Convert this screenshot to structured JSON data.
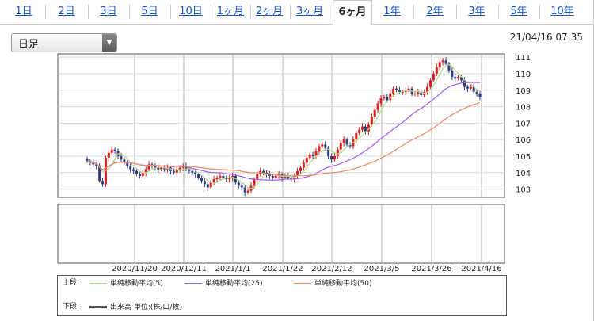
{
  "tabs": [
    {
      "label": "1日",
      "active": false
    },
    {
      "label": "2日",
      "active": false
    },
    {
      "label": "3日",
      "active": false
    },
    {
      "label": "5日",
      "active": false
    },
    {
      "label": "10日",
      "active": false
    },
    {
      "label": "1ヶ月",
      "active": false
    },
    {
      "label": "2ヶ月",
      "active": false
    },
    {
      "label": "3ヶ月",
      "active": false
    },
    {
      "label": "6ヶ月",
      "active": true
    },
    {
      "label": "1年",
      "active": false
    },
    {
      "label": "2年",
      "active": false
    },
    {
      "label": "3年",
      "active": false
    },
    {
      "label": "5年",
      "active": false
    },
    {
      "label": "10年",
      "active": false
    }
  ],
  "controls": {
    "period_select": "日足",
    "datetime": "21/04/16 07:35"
  },
  "legend": {
    "upper_label": "上段:",
    "lower_label": "下段:",
    "ma5": "単純移動平均(5)",
    "ma25": "単純移動平均(25)",
    "ma50": "単純移動平均(50)",
    "volume": "出来高 単位:(株/口/枚)"
  },
  "colors": {
    "up": "#d81e1e",
    "down": "#2f3c86",
    "ma5": "#b6d68a",
    "ma25": "#a35cf0",
    "ma50": "#ee8a63",
    "grid": "#b5b5b5",
    "active_tab_text": "#222222",
    "tab_link": "#1a56c4"
  },
  "chart_data": {
    "type": "candlestick",
    "y_ticks": [
      "103",
      "104",
      "105",
      "106",
      "107",
      "108",
      "109",
      "110",
      "111"
    ],
    "ylim": [
      102.5,
      111.2
    ],
    "x_ticks": [
      "2020/11/20",
      "2020/12/11",
      "2021/1/1",
      "2021/1/22",
      "2021/2/12",
      "2021/3/5",
      "2021/3/26",
      "2021/4/16"
    ],
    "close": [
      104.7,
      104.6,
      104.5,
      104.4,
      103.5,
      103.3,
      104.9,
      105.2,
      105.4,
      105.3,
      105.0,
      104.8,
      104.6,
      104.4,
      104.2,
      104.1,
      103.9,
      103.8,
      104.0,
      104.2,
      104.5,
      104.4,
      104.3,
      104.2,
      104.3,
      104.2,
      104.3,
      104.1,
      104.0,
      104.2,
      104.3,
      104.4,
      104.2,
      104.1,
      104.0,
      103.9,
      103.7,
      103.5,
      103.3,
      103.1,
      103.4,
      103.6,
      103.7,
      103.8,
      103.7,
      103.6,
      103.7,
      103.8,
      103.4,
      103.2,
      103.1,
      102.8,
      102.9,
      103.2,
      103.6,
      103.9,
      104.1,
      104.0,
      103.9,
      103.8,
      103.7,
      103.8,
      103.9,
      103.7,
      103.8,
      103.7,
      103.6,
      103.8,
      104.1,
      104.3,
      104.6,
      104.9,
      105.1,
      105.0,
      105.3,
      105.6,
      105.7,
      105.5,
      105.0,
      104.8,
      105.0,
      105.4,
      105.8,
      106.0,
      105.7,
      105.6,
      106.0,
      106.4,
      106.6,
      106.8,
      106.5,
      106.9,
      107.4,
      107.8,
      108.2,
      108.5,
      108.6,
      108.4,
      108.8,
      109.1,
      109.0,
      108.9,
      108.9,
      109.0,
      109.1,
      108.8,
      108.8,
      108.9,
      108.7,
      108.9,
      109.2,
      109.6,
      110.0,
      110.4,
      110.7,
      110.8,
      110.6,
      110.2,
      109.8,
      109.7,
      109.8,
      109.6,
      109.2,
      109.1,
      109.2,
      108.9,
      108.8,
      108.6
    ],
    "series": [
      {
        "name": "単純移動平均(5)"
      },
      {
        "name": "単純移動平均(25)"
      },
      {
        "name": "単純移動平均(50)"
      }
    ]
  }
}
